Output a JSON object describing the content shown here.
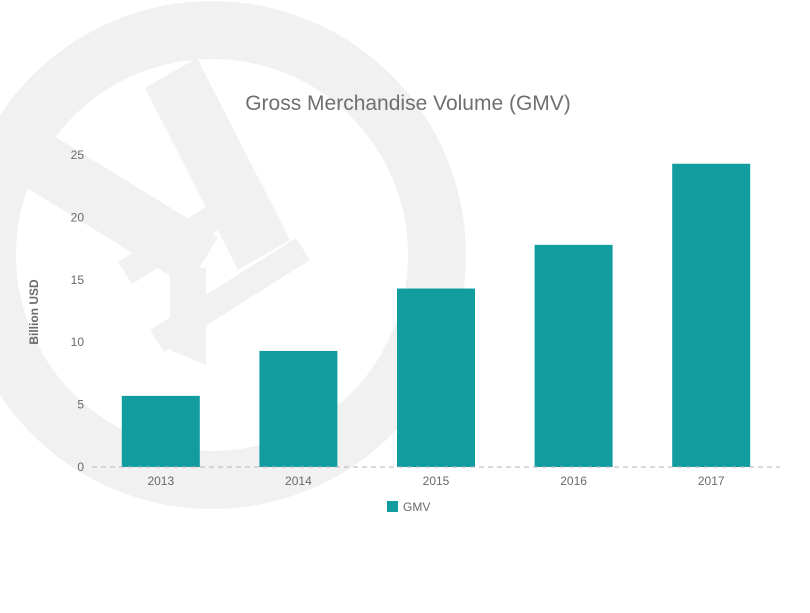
{
  "chart_data": {
    "type": "bar",
    "title": "Gross Merchandise Volume (GMV)",
    "ylabel": "Billion USD",
    "xlabel": "",
    "categories": [
      "2013",
      "2014",
      "2015",
      "2016",
      "2017"
    ],
    "series": [
      {
        "name": "GMV",
        "values": [
          5.7,
          9.3,
          14.3,
          17.8,
          24.3
        ]
      }
    ],
    "ylim": [
      0,
      25
    ],
    "yticks": [
      0,
      5,
      10,
      15,
      20,
      25
    ],
    "grid": false,
    "legend": "bottom-center"
  },
  "colors": {
    "bar": "#119ca0",
    "watermark": "#f1f1f1",
    "title": "#6f6f6f",
    "axis_text": "#6a6a6a",
    "baseline": "#b5b5b5"
  },
  "icons": {
    "watermark": "yen-icon"
  }
}
